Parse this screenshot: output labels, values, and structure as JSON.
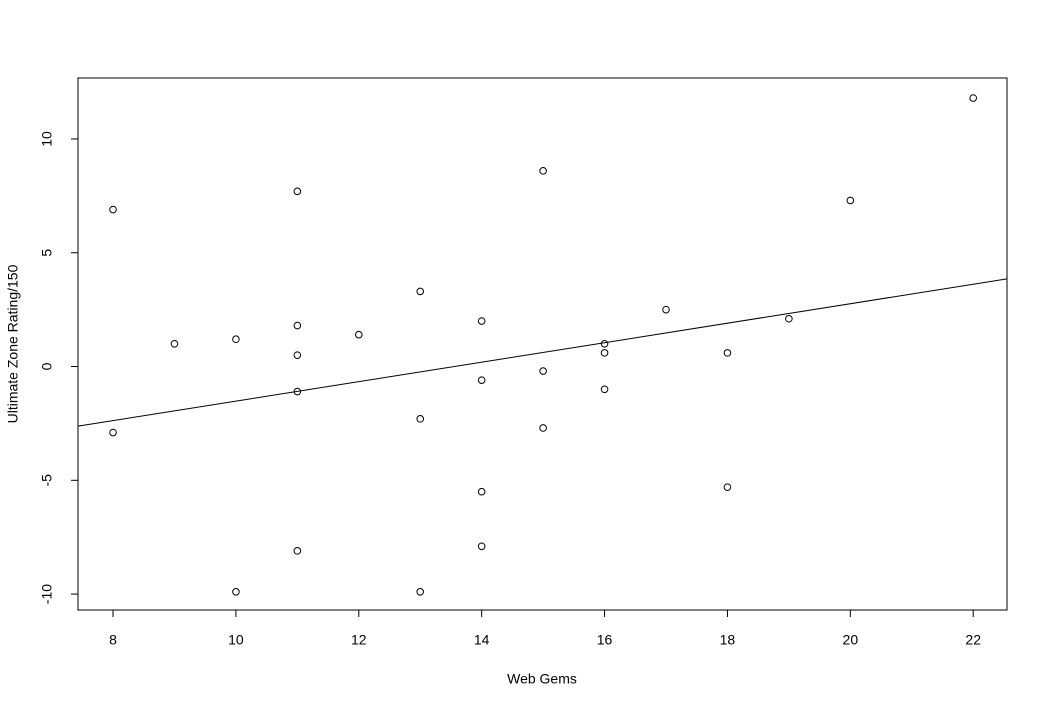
{
  "chart_data": {
    "type": "scatter",
    "x_label": "Web Gems",
    "y_label": "Ultimate Zone Rating/150",
    "x": [
      8,
      8,
      9,
      10,
      10,
      11,
      11,
      11,
      11,
      11,
      12,
      13,
      13,
      13,
      14,
      14,
      14,
      14,
      15,
      15,
      15,
      16,
      16,
      16,
      17,
      18,
      18,
      19,
      20,
      22
    ],
    "values": [
      6.9,
      -2.9,
      1.0,
      1.2,
      -9.9,
      7.7,
      1.8,
      0.5,
      -1.1,
      -8.1,
      1.4,
      3.3,
      -2.3,
      -9.9,
      2.0,
      -0.6,
      -5.5,
      -7.9,
      8.6,
      -0.2,
      -2.7,
      1.0,
      0.6,
      -1.0,
      2.5,
      0.6,
      -5.3,
      2.1,
      7.3,
      11.8
    ],
    "color": "#000000",
    "fit": {
      "intercept": -5.8,
      "slope": 0.428
    },
    "xlim": [
      7.43,
      22.55
    ],
    "ylim": [
      -10.7,
      12.68
    ],
    "xticks": [
      8,
      10,
      12,
      14,
      16,
      18,
      20,
      22
    ],
    "yticks": [
      -10,
      -5,
      0,
      5,
      10
    ]
  }
}
